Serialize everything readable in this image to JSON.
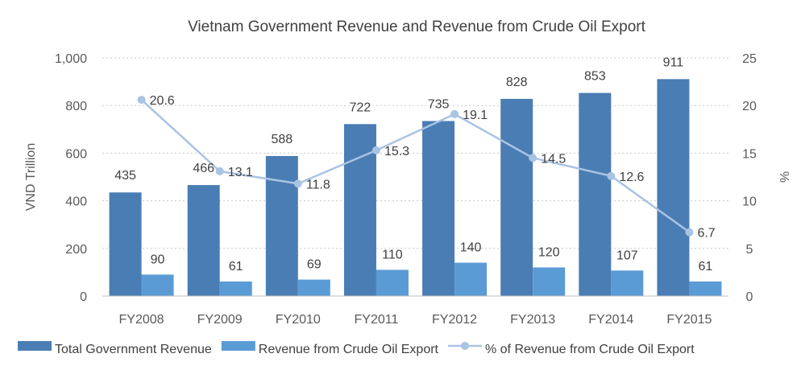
{
  "chart_data": {
    "type": "bar",
    "title": "Vietnam Government Revenue and Revenue from Crude Oil Export",
    "categories": [
      "FY2008",
      "FY2009",
      "FY2010",
      "FY2011",
      "FY2012",
      "FY2013",
      "FY2014",
      "FY2015"
    ],
    "series": [
      {
        "name": "Total Government Revenue",
        "type": "bar",
        "axis": "left",
        "color": "#4a7db3",
        "values": [
          435,
          466,
          588,
          722,
          735,
          828,
          853,
          911
        ]
      },
      {
        "name": "Revenue from Crude Oil Export",
        "type": "bar",
        "axis": "left",
        "color": "#5b9bd5",
        "values": [
          90,
          61,
          69,
          110,
          140,
          120,
          107,
          61
        ]
      },
      {
        "name": "% of Revenue from Crude Oil Export",
        "type": "line",
        "axis": "right",
        "color": "#a9c3e3",
        "values": [
          20.6,
          13.1,
          11.8,
          15.3,
          19.1,
          14.5,
          12.6,
          6.7
        ]
      }
    ],
    "ylabel": "VND Trillion",
    "ylim": [
      0,
      1000
    ],
    "yticks": [
      "0",
      "200",
      "400",
      "600",
      "800",
      "1,000"
    ],
    "y2label": "%",
    "y2lim": [
      0,
      25
    ],
    "y2ticks": [
      "0",
      "5",
      "10",
      "15",
      "20",
      "25"
    ],
    "grid": true,
    "legend": "bottom"
  }
}
